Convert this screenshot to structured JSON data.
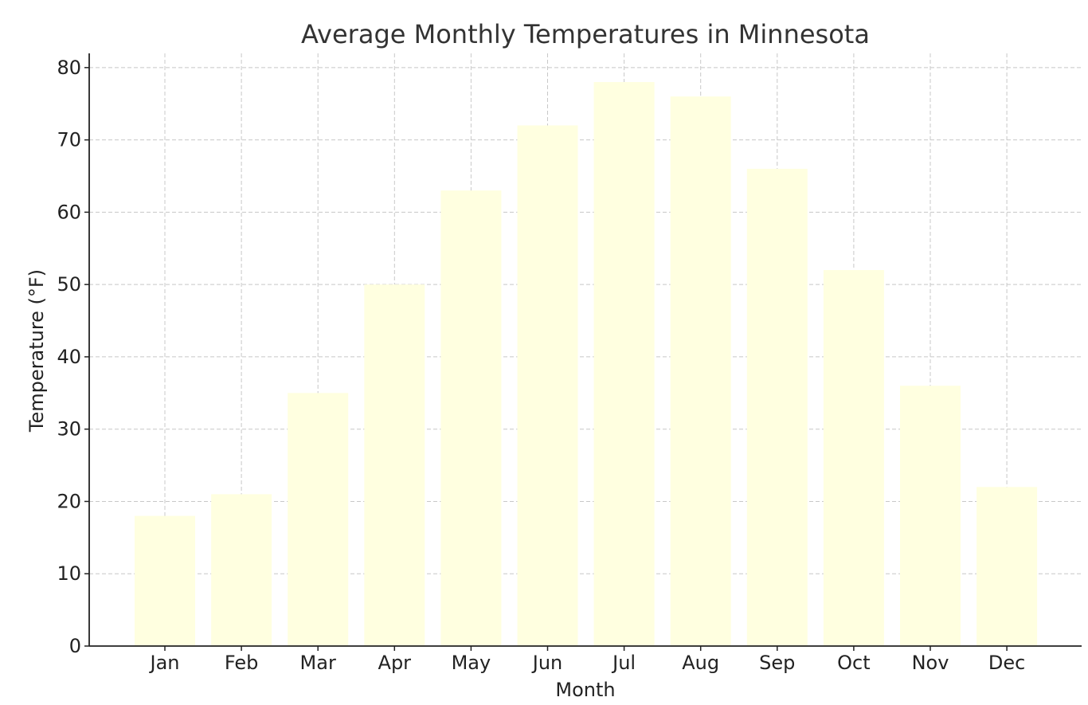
{
  "chart_data": {
    "type": "bar",
    "title": "Average Monthly Temperatures in Minnesota",
    "xlabel": "Month",
    "ylabel": "Temperature (°F)",
    "categories": [
      "Jan",
      "Feb",
      "Mar",
      "Apr",
      "May",
      "Jun",
      "Jul",
      "Aug",
      "Sep",
      "Oct",
      "Nov",
      "Dec"
    ],
    "values": [
      18,
      21,
      35,
      50,
      63,
      72,
      78,
      76,
      66,
      52,
      36,
      22
    ],
    "ylim": [
      0,
      82
    ],
    "yticks": [
      0,
      10,
      20,
      30,
      40,
      50,
      60,
      70,
      80
    ],
    "grid": true,
    "grid_style": "dashed",
    "legend": "none",
    "colors": {
      "bar": "#ffffe0",
      "grid": "#c8c8c8",
      "axis": "#222222",
      "text": "#222222"
    }
  }
}
